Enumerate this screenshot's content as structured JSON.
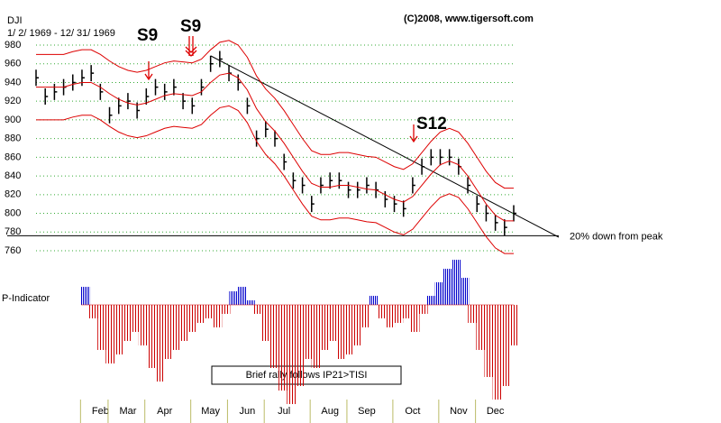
{
  "chart_data": [
    {
      "type": "stock",
      "title": "DJI",
      "subtitle": "1/ 2/ 1969 - 12/ 31/ 1969",
      "credit": "(C)2008, www.tigersoft.com",
      "categories": [
        null,
        null,
        null,
        null,
        null,
        null,
        null,
        "Feb",
        null,
        null,
        "Mar",
        null,
        null,
        null,
        "Apr",
        null,
        null,
        null,
        null,
        "May",
        null,
        null,
        null,
        "Jun",
        null,
        null,
        null,
        "Jul",
        null,
        null,
        null,
        null,
        "Aug",
        null,
        null,
        null,
        "Sep",
        null,
        null,
        null,
        null,
        "Oct",
        null,
        null,
        null,
        null,
        "Nov",
        null,
        null,
        null,
        "Dec",
        null,
        null
      ],
      "series": [
        {
          "name": "DJI",
          "color": "#000000",
          "values": [
            945,
            925,
            930,
            935,
            940,
            945,
            950,
            930,
            905,
            915,
            920,
            910,
            925,
            935,
            930,
            935,
            920,
            915,
            935,
            960,
            965,
            950,
            940,
            915,
            880,
            890,
            880,
            855,
            835,
            830,
            810,
            830,
            835,
            835,
            825,
            825,
            830,
            825,
            815,
            810,
            805,
            830,
            850,
            860,
            860,
            860,
            850,
            830,
            810,
            800,
            790,
            785,
            800
          ]
        },
        {
          "name": "upper band",
          "color": "#dd0000",
          "values": [
            970,
            970,
            970,
            970,
            973,
            975,
            975,
            970,
            963,
            957,
            953,
            951,
            953,
            957,
            961,
            963,
            962,
            961,
            965,
            975,
            983,
            985,
            980,
            967,
            947,
            933,
            923,
            910,
            895,
            880,
            867,
            863,
            863,
            865,
            865,
            863,
            861,
            860,
            855,
            850,
            847,
            853,
            865,
            877,
            887,
            891,
            887,
            875,
            860,
            845,
            833,
            827,
            827
          ]
        },
        {
          "name": "middle band",
          "color": "#dd0000",
          "values": [
            935,
            935,
            935,
            935,
            938,
            940,
            940,
            935,
            928,
            922,
            918,
            916,
            918,
            922,
            926,
            928,
            927,
            926,
            930,
            940,
            948,
            950,
            945,
            932,
            912,
            898,
            888,
            875,
            860,
            845,
            832,
            828,
            828,
            830,
            830,
            828,
            826,
            825,
            820,
            815,
            812,
            818,
            830,
            842,
            852,
            856,
            852,
            840,
            825,
            810,
            798,
            792,
            792
          ]
        },
        {
          "name": "lower band",
          "color": "#dd0000",
          "values": [
            900,
            900,
            900,
            900,
            903,
            905,
            905,
            900,
            893,
            887,
            883,
            881,
            883,
            887,
            891,
            893,
            892,
            891,
            895,
            905,
            913,
            915,
            910,
            897,
            877,
            863,
            853,
            840,
            825,
            810,
            797,
            793,
            793,
            795,
            795,
            793,
            791,
            790,
            785,
            780,
            777,
            783,
            795,
            807,
            817,
            821,
            817,
            805,
            790,
            775,
            763,
            757,
            757
          ]
        }
      ],
      "ylim": [
        760,
        980
      ],
      "yticks": [
        760,
        780,
        800,
        820,
        840,
        860,
        880,
        900,
        920,
        940,
        960,
        980
      ],
      "grid": true,
      "reference_line": {
        "value": 776,
        "label": "20% down from peak"
      },
      "annotations": [
        "S9",
        "S9",
        "S12"
      ]
    },
    {
      "type": "bar",
      "title": "P-Indicator",
      "annotation": "Brief rally follows IP21>TISI",
      "positive_color": "#0000cc",
      "negative_color": "#cc0000",
      "values": [
        20,
        -15,
        -50,
        -65,
        -55,
        -40,
        -30,
        -45,
        -70,
        -85,
        -60,
        -50,
        -40,
        -30,
        -20,
        -15,
        -25,
        -10,
        15,
        20,
        5,
        -10,
        -40,
        -70,
        -95,
        -110,
        -90,
        -60,
        -70,
        -50,
        -40,
        -60,
        -55,
        -45,
        -25,
        10,
        -15,
        -25,
        -20,
        -15,
        -30,
        -10,
        10,
        25,
        40,
        50,
        30,
        -20,
        -50,
        -80,
        -105,
        -90,
        -45
      ]
    }
  ]
}
